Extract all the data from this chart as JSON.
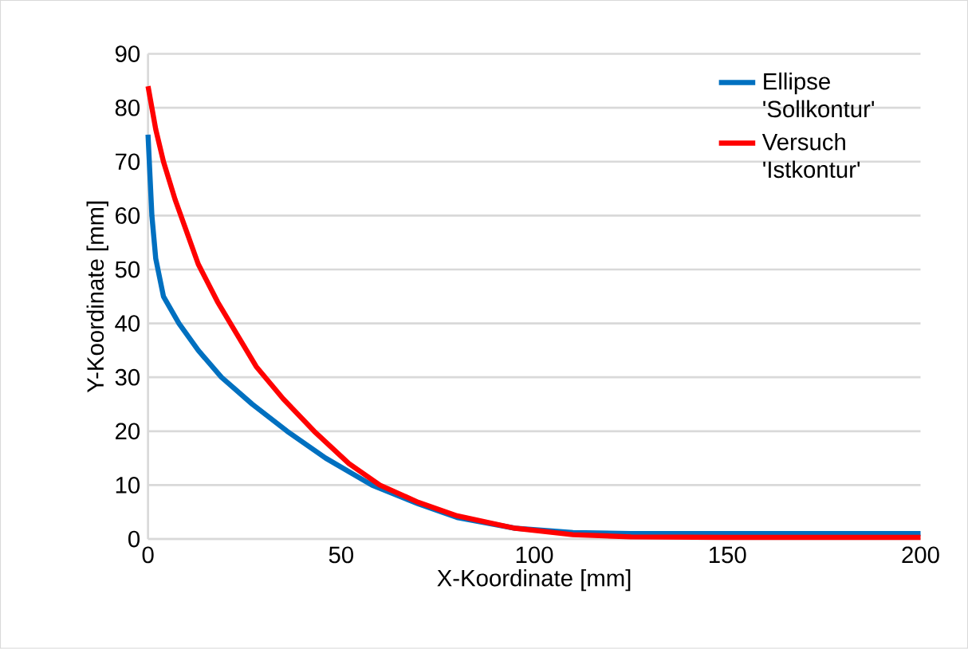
{
  "chart_data": {
    "type": "line",
    "xlabel": "X-Koordinate [mm]",
    "ylabel": "Y-Koordinate [mm]",
    "xlim": [
      0,
      200
    ],
    "xticks": [
      0,
      50,
      100,
      150,
      200
    ],
    "ylim": [
      0,
      90
    ],
    "yticks": [
      0,
      10,
      20,
      30,
      40,
      50,
      60,
      70,
      80,
      90
    ],
    "grid": "y",
    "legend": "top right",
    "marker": "none",
    "line_style": "solid",
    "series": [
      {
        "name": "Ellipse 'Sollkontur'",
        "color": "#0070c0",
        "x": [
          0,
          1,
          2,
          4,
          8,
          13,
          19,
          27,
          36,
          46,
          58,
          70,
          80,
          95,
          110,
          125,
          150,
          200
        ],
        "values": [
          75,
          60,
          52,
          45,
          40,
          35,
          30,
          25,
          20,
          15,
          10,
          6.5,
          4,
          2,
          1.2,
          1,
          1,
          1
        ]
      },
      {
        "name": "Versuch 'Istkontur'",
        "color": "#ff0000",
        "x": [
          0,
          2,
          4,
          7,
          10,
          13,
          18,
          23,
          28,
          35,
          43,
          52,
          60,
          70,
          80,
          95,
          110,
          125,
          150,
          200
        ],
        "values": [
          84,
          76,
          70,
          63,
          57,
          51,
          44,
          38,
          32,
          26,
          20,
          14,
          10,
          6.8,
          4.3,
          2,
          0.8,
          0.4,
          0.3,
          0.3
        ]
      }
    ]
  }
}
